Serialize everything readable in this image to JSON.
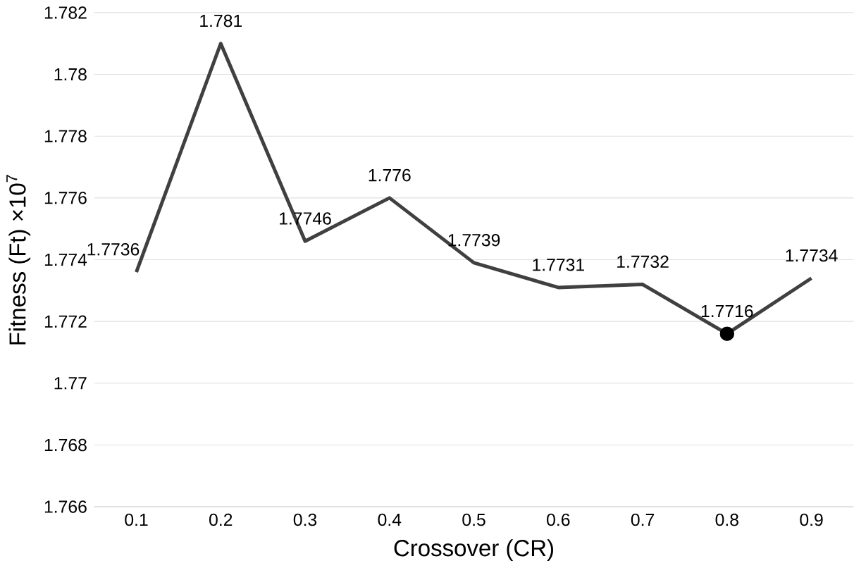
{
  "chart_data": {
    "type": "line",
    "xlabel": "Crossover (CR)",
    "ylabel": "Fitness (Ft) ×10$^{7}$",
    "categories": [
      "0.1",
      "0.2",
      "0.3",
      "0.4",
      "0.5",
      "0.6",
      "0.7",
      "0.8",
      "0.9"
    ],
    "series": [
      {
        "color": "#404040",
        "values": [
          1.7736,
          1.781,
          1.7746,
          1.776,
          1.7739,
          1.7731,
          1.7732,
          1.7716,
          1.7734
        ],
        "value_labels": [
          "1.7736",
          "1.781",
          "1.7746",
          "1.776",
          "1.7739",
          "1.7731",
          "1.7732",
          null,
          "1.7734"
        ]
      },
      {
        "type": "scatter",
        "marker": "circle",
        "color": "#000000",
        "values": [
          null,
          null,
          null,
          null,
          null,
          null,
          null,
          1.7716,
          null
        ],
        "value_labels": [
          null,
          null,
          null,
          null,
          null,
          null,
          null,
          "1.7716",
          null
        ]
      }
    ],
    "ylim": [
      1.766,
      1.782
    ],
    "yticks": [
      1.766,
      1.768,
      1.77,
      1.772,
      1.774,
      1.776,
      1.778,
      1.78,
      1.782
    ],
    "grid": "y"
  }
}
